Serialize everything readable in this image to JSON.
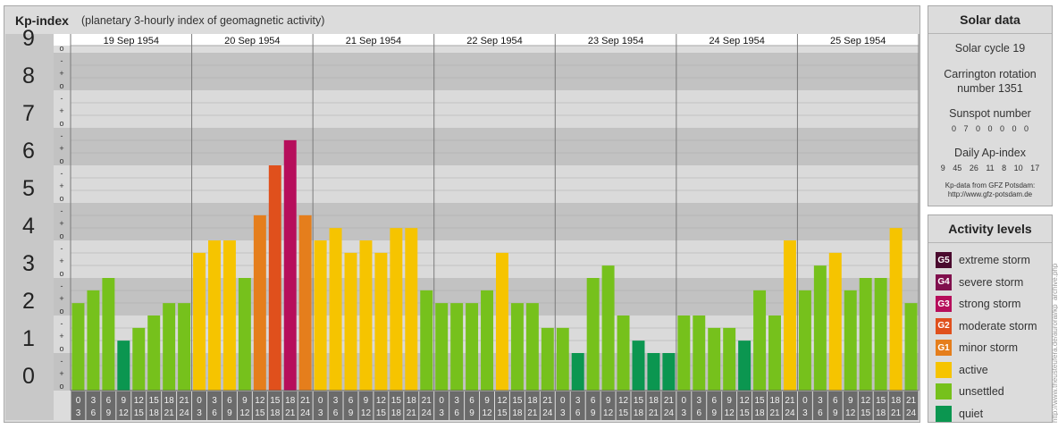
{
  "header": {
    "title": "Kp-index",
    "subtitle": "(planetary 3-hourly index of geomagnetic activity)"
  },
  "chart_data": {
    "type": "bar",
    "title": "Kp-index",
    "subtitle": "(planetary 3-hourly index of geomagnetic activity)",
    "ylim": [
      0,
      9
    ],
    "y_major_ticks": [
      "0",
      "1",
      "2",
      "3",
      "4",
      "5",
      "6",
      "7",
      "8",
      "9"
    ],
    "y_minor_ticks": [
      "o",
      "+",
      "-"
    ],
    "dates": [
      "19 Sep 1954",
      "20 Sep 1954",
      "21 Sep 1954",
      "22 Sep 1954",
      "23 Sep 1954",
      "24 Sep 1954",
      "25 Sep 1954"
    ],
    "interval_start_labels": [
      "0",
      "3",
      "6",
      "9",
      "12",
      "15",
      "18",
      "21"
    ],
    "interval_end_labels": [
      "3",
      "6",
      "9",
      "12",
      "15",
      "18",
      "21",
      "24"
    ],
    "values": [
      [
        2.33,
        2.67,
        3.0,
        1.33,
        1.67,
        2.0,
        2.33,
        2.33
      ],
      [
        3.67,
        4.0,
        4.0,
        3.0,
        4.67,
        6.0,
        6.67,
        4.67
      ],
      [
        4.0,
        4.33,
        3.67,
        4.0,
        3.67,
        4.33,
        4.33,
        2.67
      ],
      [
        2.33,
        2.33,
        2.33,
        2.67,
        3.67,
        2.33,
        2.33,
        1.67
      ],
      [
        1.67,
        1.0,
        3.0,
        3.33,
        2.0,
        1.33,
        1.0,
        1.0
      ],
      [
        2.0,
        2.0,
        1.67,
        1.67,
        1.33,
        2.67,
        2.0,
        4.0
      ],
      [
        2.67,
        3.33,
        3.67,
        2.67,
        3.0,
        3.0,
        4.33,
        2.33
      ]
    ],
    "level_colors": {
      "quiet": "#0b9650",
      "unsettled": "#76c11c",
      "active": "#f6c400",
      "G1": "#e57e1c",
      "G2": "#e0501c",
      "G3": "#b60e5b",
      "G4": "#80104d",
      "G5": "#4a0a2e"
    },
    "grid": true
  },
  "solar": {
    "heading": "Solar data",
    "cycle": "Solar cycle 19",
    "rotation": "Carrington rotation number 1351",
    "sunspot_heading": "Sunspot number",
    "sunspot_values": "0 7 0 0 0 0 0",
    "ap_heading": "Daily Ap-index",
    "ap_values": "9 45 26 11 8 10 17",
    "credit_line1": "Kp-data from GFZ Potsdam:",
    "credit_line2": "http://www.gfz-potsdam.de"
  },
  "activity": {
    "heading": "Activity levels",
    "items": [
      {
        "code": "G5",
        "label": "extreme storm",
        "color": "#4a0a2e"
      },
      {
        "code": "G4",
        "label": "severe storm",
        "color": "#80104d"
      },
      {
        "code": "G3",
        "label": "strong storm",
        "color": "#b60e5b"
      },
      {
        "code": "G2",
        "label": "moderate storm",
        "color": "#e0501c"
      },
      {
        "code": "G1",
        "label": "minor storm",
        "color": "#e57e1c"
      },
      {
        "code": "",
        "label": "active",
        "color": "#f6c400"
      },
      {
        "code": "",
        "label": "unsettled",
        "color": "#76c11c"
      },
      {
        "code": "",
        "label": "quiet",
        "color": "#0b9650"
      }
    ]
  },
  "side_credit": "http://www.theusteufera.de/auroral/kp_archive.php"
}
